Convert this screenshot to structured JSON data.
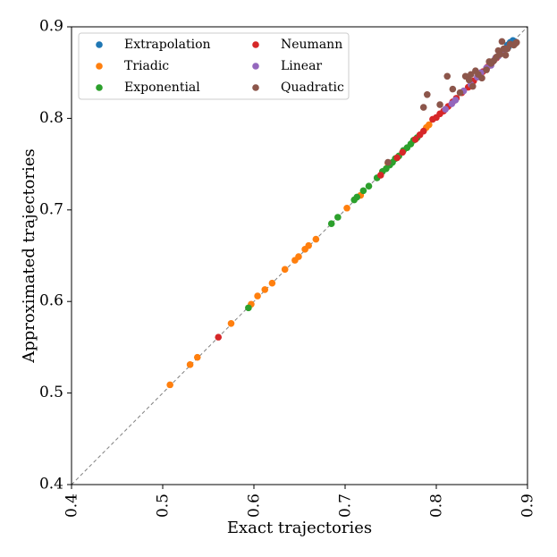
{
  "chart_data": {
    "type": "scatter",
    "title": "",
    "xlabel": "Exact trajectories",
    "ylabel": "Approximated trajectories",
    "xlim": [
      0.4,
      0.9
    ],
    "ylim": [
      0.4,
      0.9
    ],
    "xticks": [
      "0.4",
      "0.5",
      "0.6",
      "0.7",
      "0.8",
      "0.9"
    ],
    "yticks": [
      "0.4",
      "0.5",
      "0.6",
      "0.7",
      "0.8",
      "0.9"
    ],
    "xtick_values": [
      0.4,
      0.5,
      0.6,
      0.7,
      0.8,
      0.9
    ],
    "ytick_values": [
      0.4,
      0.5,
      0.6,
      0.7,
      0.8,
      0.9
    ],
    "reference_line": {
      "from": [
        0.4,
        0.4
      ],
      "to": [
        0.9,
        0.9
      ],
      "style": "dashed",
      "color": "#808080"
    },
    "legend_position": "top-left",
    "legend_columns": 2,
    "series": [
      {
        "name": "Extrapolation",
        "color": "#1f77b4",
        "points": [
          [
            0.878,
            0.88
          ],
          [
            0.881,
            0.883
          ],
          [
            0.884,
            0.885
          ],
          [
            0.886,
            0.884
          ],
          [
            0.879,
            0.878
          ]
        ]
      },
      {
        "name": "Triadic",
        "color": "#ff7f0e",
        "points": [
          [
            0.508,
            0.509
          ],
          [
            0.53,
            0.531
          ],
          [
            0.538,
            0.539
          ],
          [
            0.575,
            0.576
          ],
          [
            0.597,
            0.597
          ],
          [
            0.604,
            0.606
          ],
          [
            0.612,
            0.613
          ],
          [
            0.62,
            0.62
          ],
          [
            0.634,
            0.635
          ],
          [
            0.645,
            0.645
          ],
          [
            0.649,
            0.649
          ],
          [
            0.656,
            0.657
          ],
          [
            0.66,
            0.661
          ],
          [
            0.668,
            0.668
          ],
          [
            0.702,
            0.702
          ],
          [
            0.717,
            0.716
          ],
          [
            0.747,
            0.751
          ],
          [
            0.789,
            0.79
          ],
          [
            0.792,
            0.793
          ]
        ]
      },
      {
        "name": "Exponential",
        "color": "#2ca02c",
        "points": [
          [
            0.594,
            0.593
          ],
          [
            0.685,
            0.685
          ],
          [
            0.692,
            0.692
          ],
          [
            0.71,
            0.711
          ],
          [
            0.713,
            0.714
          ],
          [
            0.72,
            0.721
          ],
          [
            0.726,
            0.726
          ],
          [
            0.735,
            0.735
          ],
          [
            0.741,
            0.742
          ],
          [
            0.745,
            0.745
          ],
          [
            0.749,
            0.749
          ],
          [
            0.752,
            0.752
          ],
          [
            0.755,
            0.756
          ],
          [
            0.759,
            0.759
          ],
          [
            0.764,
            0.765
          ],
          [
            0.768,
            0.768
          ],
          [
            0.772,
            0.772
          ],
          [
            0.775,
            0.776
          ],
          [
            0.779,
            0.779
          ]
        ]
      },
      {
        "name": "Neumann",
        "color": "#d62728",
        "points": [
          [
            0.561,
            0.561
          ],
          [
            0.739,
            0.738
          ],
          [
            0.757,
            0.757
          ],
          [
            0.763,
            0.763
          ],
          [
            0.777,
            0.777
          ],
          [
            0.782,
            0.782
          ],
          [
            0.786,
            0.786
          ],
          [
            0.796,
            0.799
          ],
          [
            0.8,
            0.801
          ],
          [
            0.804,
            0.805
          ],
          [
            0.808,
            0.808
          ],
          [
            0.813,
            0.813
          ],
          [
            0.818,
            0.818
          ],
          [
            0.822,
            0.822
          ],
          [
            0.828,
            0.828
          ],
          [
            0.835,
            0.834
          ],
          [
            0.841,
            0.841
          ],
          [
            0.846,
            0.846
          ],
          [
            0.851,
            0.851
          ],
          [
            0.856,
            0.856
          ],
          [
            0.861,
            0.861
          ],
          [
            0.866,
            0.866
          ],
          [
            0.872,
            0.872
          ],
          [
            0.876,
            0.876
          ]
        ]
      },
      {
        "name": "Linear",
        "color": "#9467bd",
        "points": [
          [
            0.81,
            0.81
          ],
          [
            0.817,
            0.816
          ],
          [
            0.821,
            0.82
          ],
          [
            0.83,
            0.83
          ],
          [
            0.838,
            0.837
          ],
          [
            0.845,
            0.845
          ],
          [
            0.849,
            0.85
          ],
          [
            0.855,
            0.855
          ],
          [
            0.86,
            0.858
          ],
          [
            0.865,
            0.866
          ],
          [
            0.868,
            0.868
          ],
          [
            0.873,
            0.872
          ]
        ]
      },
      {
        "name": "Quadratic",
        "color": "#8c564b",
        "points": [
          [
            0.747,
            0.752
          ],
          [
            0.786,
            0.812
          ],
          [
            0.79,
            0.826
          ],
          [
            0.804,
            0.815
          ],
          [
            0.812,
            0.846
          ],
          [
            0.818,
            0.832
          ],
          [
            0.826,
            0.828
          ],
          [
            0.832,
            0.846
          ],
          [
            0.836,
            0.842
          ],
          [
            0.838,
            0.848
          ],
          [
            0.84,
            0.835
          ],
          [
            0.843,
            0.852
          ],
          [
            0.846,
            0.848
          ],
          [
            0.85,
            0.844
          ],
          [
            0.855,
            0.853
          ],
          [
            0.858,
            0.862
          ],
          [
            0.86,
            0.86
          ],
          [
            0.863,
            0.863
          ],
          [
            0.866,
            0.867
          ],
          [
            0.868,
            0.874
          ],
          [
            0.87,
            0.87
          ],
          [
            0.872,
            0.884
          ],
          [
            0.874,
            0.876
          ],
          [
            0.876,
            0.869
          ],
          [
            0.878,
            0.876
          ],
          [
            0.881,
            0.881
          ],
          [
            0.885,
            0.88
          ],
          [
            0.887,
            0.882
          ],
          [
            0.888,
            0.883
          ]
        ]
      }
    ]
  }
}
